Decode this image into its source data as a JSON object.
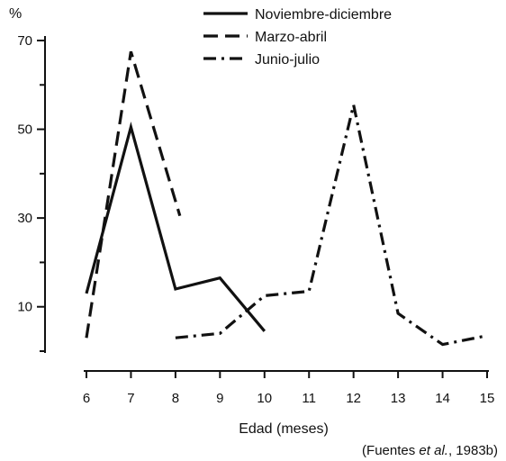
{
  "chart_data": {
    "type": "line",
    "title": "",
    "xlabel": "Edad (meses)",
    "ylabel": "%",
    "xlim": [
      6,
      15
    ],
    "ylim": [
      0,
      70
    ],
    "x_ticks": [
      6,
      7,
      8,
      9,
      10,
      11,
      12,
      13,
      14,
      15
    ],
    "y_ticks": [
      10,
      30,
      50,
      70
    ],
    "grid": false,
    "legend_position": "top-right",
    "source": {
      "prefix": "(Fuentes ",
      "italic": "et al.",
      "suffix": ", 1983b)"
    },
    "series": [
      {
        "name": "Noviembre-diciembre",
        "dash": "solid",
        "x": [
          6,
          7,
          8,
          9,
          10
        ],
        "y": [
          13,
          50.5,
          14,
          16.5,
          4.5
        ]
      },
      {
        "name": "Marzo-abril",
        "dash": "dashed",
        "x": [
          6,
          7,
          8.1
        ],
        "y": [
          3,
          67.5,
          30.5
        ]
      },
      {
        "name": "Junio-julio",
        "dash": "dashdot",
        "x": [
          8,
          9,
          10,
          11,
          12,
          13,
          14,
          15
        ],
        "y": [
          3,
          4,
          12.5,
          13.5,
          55.5,
          8.5,
          1.5,
          3.5
        ]
      }
    ]
  }
}
